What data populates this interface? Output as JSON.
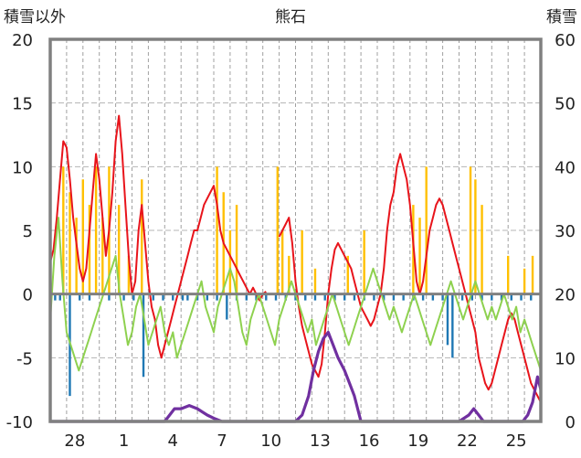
{
  "chart_data": {
    "type": "line",
    "title": "熊石",
    "left_axis_label": "積雪以外",
    "right_axis_label": "積雪",
    "y_left": {
      "min": -10,
      "max": 20,
      "ticks": [
        "20",
        "15",
        "10",
        "5",
        "0",
        "-5",
        "-10"
      ]
    },
    "y_right": {
      "min": 0,
      "max": 60,
      "ticks": [
        "60",
        "50",
        "40",
        "30",
        "20",
        "10",
        "0"
      ]
    },
    "x_range": [
      0,
      30
    ],
    "x_ticks": [
      {
        "x": 1.5,
        "label": "28"
      },
      {
        "x": 4.5,
        "label": "1"
      },
      {
        "x": 7.5,
        "label": "4"
      },
      {
        "x": 10.5,
        "label": "7"
      },
      {
        "x": 13.5,
        "label": "10"
      },
      {
        "x": 16.5,
        "label": "13"
      },
      {
        "x": 19.5,
        "label": "16"
      },
      {
        "x": 22.5,
        "label": "19"
      },
      {
        "x": 25.5,
        "label": "22"
      },
      {
        "x": 28.5,
        "label": "25"
      }
    ],
    "grid": true,
    "colors": {
      "temperature": "#e8141b",
      "wind": "#8ed14f",
      "precipitation": "#ffc000",
      "sunshine": "#1f78b4",
      "snow_depth": "#7030a0",
      "zero_line": "#808080",
      "frame": "#808080"
    },
    "series": [
      {
        "key": "temperature",
        "axis": "left",
        "x": [
          0,
          0.2,
          0.4,
          0.6,
          0.8,
          1,
          1.2,
          1.4,
          1.6,
          1.8,
          2,
          2.2,
          2.4,
          2.6,
          2.8,
          3,
          3.2,
          3.4,
          3.6,
          3.8,
          4,
          4.2,
          4.4,
          4.6,
          4.8,
          5,
          5.2,
          5.4,
          5.6,
          5.8,
          6,
          6.2,
          6.4,
          6.6,
          6.8,
          7,
          7.2,
          7.4,
          7.6,
          7.8,
          8,
          8.2,
          8.4,
          8.6,
          8.8,
          9,
          9.2,
          9.4,
          9.6,
          9.8,
          10,
          10.2,
          10.4,
          10.6,
          10.8,
          11,
          11.2,
          11.4,
          11.6,
          11.8,
          12,
          12.2,
          12.4,
          12.6,
          12.8,
          13,
          13.2
        ],
        "y": [
          2.5,
          3.5,
          6,
          9,
          12,
          11.5,
          9,
          6,
          4,
          2,
          1,
          2,
          5,
          8,
          11,
          9,
          6,
          3,
          5,
          8,
          12,
          14,
          11,
          7,
          3,
          0,
          1,
          5,
          7,
          4,
          1,
          -1,
          -2,
          -4,
          -5,
          -4,
          -3,
          -2,
          -1,
          0,
          1,
          2,
          3,
          4,
          5,
          5,
          6,
          7,
          7.5,
          8,
          8.5,
          7,
          5,
          4,
          3.5,
          3,
          2.5,
          2,
          1.5,
          1,
          0.5,
          0,
          0.5,
          0,
          -0.5,
          0,
          0.2
        ]
      },
      {
        "key": "temperature",
        "axis": "left",
        "x": [
          14,
          14.2,
          14.4,
          14.6,
          14.8,
          15,
          15.2,
          15.4,
          15.6,
          15.8,
          16,
          16.2,
          16.4,
          16.6,
          16.8,
          17,
          17.2,
          17.4,
          17.6,
          17.8,
          18,
          18.2,
          18.4,
          18.6,
          18.8,
          19,
          19.2,
          19.4,
          19.6,
          19.8,
          20,
          20.2,
          20.4,
          20.6,
          20.8,
          21,
          21.2,
          21.4,
          21.6,
          21.8,
          22,
          22.2,
          22.4,
          22.6,
          22.8,
          23,
          23.2,
          23.4,
          23.6,
          23.8,
          24,
          24.2,
          24.4,
          24.6,
          24.8,
          25,
          25.2,
          25.4,
          25.6,
          25.8,
          26,
          26.2,
          26.4,
          26.6,
          26.8,
          27,
          27.2,
          27.4,
          27.6,
          27.8,
          28,
          28.2,
          28.4,
          28.6,
          28.8,
          29,
          29.2,
          29.4,
          29.6,
          29.8,
          30
        ],
        "y": [
          4.5,
          5,
          5.5,
          6,
          4,
          1,
          -1,
          -2.5,
          -3.5,
          -4.5,
          -5.5,
          -6,
          -6.5,
          -5.5,
          -3,
          0,
          2,
          3.5,
          4,
          3.5,
          3,
          2.5,
          2,
          1,
          0,
          -1,
          -1.5,
          -2,
          -2.5,
          -2,
          -1,
          0,
          2,
          5,
          7,
          8,
          10,
          11,
          10,
          9,
          7,
          4,
          1,
          0,
          1,
          3,
          5,
          6,
          7,
          7.5,
          7,
          6,
          5,
          4,
          3,
          2,
          1,
          0,
          -1,
          -2,
          -3,
          -5,
          -6,
          -7,
          -7.5,
          -7,
          -6,
          -5,
          -4,
          -3,
          -2,
          -1.5,
          -2,
          -3,
          -4,
          -5,
          -6,
          -7,
          -7.5,
          -8,
          -8.5
        ]
      },
      {
        "key": "wind",
        "axis": "left",
        "x": [
          0,
          0.25,
          0.5,
          0.75,
          1,
          1.25,
          1.5,
          1.75,
          2,
          2.25,
          2.5,
          2.75,
          3,
          3.25,
          3.5,
          3.75,
          4,
          4.25,
          4.5,
          4.75,
          5,
          5.25,
          5.5,
          5.75,
          6,
          6.25,
          6.5,
          6.75,
          7,
          7.25,
          7.5,
          7.75,
          8,
          8.25,
          8.5,
          8.75,
          9,
          9.25,
          9.5,
          9.75,
          10,
          10.25,
          10.5,
          10.75,
          11,
          11.25,
          11.5,
          11.75,
          12,
          12.25,
          12.5,
          12.75,
          13,
          13.25,
          13.5,
          13.75,
          14,
          14.25,
          14.5,
          14.75,
          15,
          15.25,
          15.5,
          15.75,
          16,
          16.25,
          16.5,
          16.75,
          17,
          17.25,
          17.5,
          17.75,
          18,
          18.25,
          18.5,
          18.75,
          19,
          19.25,
          19.5,
          19.75,
          20,
          20.25,
          20.5,
          20.75,
          21,
          21.25,
          21.5,
          21.75,
          22,
          22.25,
          22.5,
          22.75,
          23,
          23.25,
          23.5,
          23.75,
          24,
          24.25,
          24.5,
          24.75,
          25,
          25.25,
          25.5,
          25.75,
          26,
          26.25,
          26.5,
          26.75,
          27,
          27.25,
          27.5,
          27.75,
          28,
          28.25,
          28.5,
          28.75,
          29,
          29.25,
          29.5,
          29.75,
          30
        ],
        "y": [
          -2,
          3,
          6,
          1,
          -3,
          -4,
          -5,
          -6,
          -5,
          -4,
          -3,
          -2,
          -1,
          0,
          1,
          2,
          3,
          0,
          -2,
          -4,
          -3,
          -1,
          0,
          -2,
          -4,
          -3,
          -2,
          -1,
          -3,
          -4,
          -3,
          -5,
          -4,
          -3,
          -2,
          -1,
          0,
          1,
          -1,
          -2,
          -3,
          -1,
          0,
          1,
          2,
          1,
          -1,
          -3,
          -4,
          -2,
          -1,
          0,
          -1,
          -2,
          -3,
          -4,
          -2,
          -1,
          0,
          1,
          0,
          -1,
          -2,
          -3,
          -2,
          -4,
          -3,
          -2,
          -1,
          0,
          -1,
          -2,
          -3,
          -4,
          -3,
          -2,
          -1,
          0,
          1,
          2,
          1,
          0,
          -1,
          -2,
          -1,
          -2,
          -3,
          -2,
          -1,
          0,
          -1,
          -2,
          -3,
          -4,
          -3,
          -2,
          -1,
          0,
          1,
          0,
          -1,
          -2,
          -1,
          0,
          1,
          0,
          -1,
          -2,
          -1,
          -2,
          -1,
          0,
          -1,
          -2,
          -1,
          -3,
          -2,
          -3,
          -4,
          -5,
          -6
        ]
      },
      {
        "key": "snow_depth",
        "axis": "right",
        "x": [
          0,
          7,
          7.3,
          7.6,
          8,
          8.5,
          9,
          9.3,
          9.6,
          10,
          10.5,
          11,
          12,
          13,
          14,
          15,
          15.4,
          15.8,
          16.1,
          16.4,
          16.7,
          17,
          17.3,
          17.6,
          18,
          18.3,
          18.6,
          19,
          20,
          21,
          22,
          23,
          24,
          24.5,
          25,
          25.3,
          25.6,
          25.9,
          26.2,
          26.5,
          27,
          28,
          28.5,
          28.9,
          29.2,
          29.5,
          29.8,
          30
        ],
        "y": [
          0,
          0,
          1,
          2,
          2,
          2.5,
          2,
          1.5,
          1,
          0.5,
          0,
          0,
          0,
          0,
          0,
          0,
          1,
          4,
          8,
          11,
          13,
          14,
          12,
          10,
          8,
          6,
          4,
          0,
          0,
          0,
          0,
          0,
          0,
          0,
          0,
          0.5,
          1,
          2,
          1,
          0,
          0,
          0,
          0,
          0,
          1,
          3,
          7,
          5
        ]
      }
    ],
    "bars": [
      {
        "key": "precipitation",
        "x": [
          0.8,
          1.2,
          1.6,
          2.0,
          2.4,
          2.8,
          3.2,
          3.6,
          4.2,
          4.8,
          5.6,
          10.2,
          10.6,
          11,
          11.4,
          13.9,
          14.2,
          14.6,
          15.4,
          16.2,
          18.2,
          19.2,
          22.2,
          22.6,
          23,
          25.7,
          26,
          26.4,
          28,
          29,
          29.5
        ],
        "y": [
          10,
          8,
          6,
          9,
          7,
          10,
          6,
          10,
          7,
          3,
          9,
          10,
          8,
          5,
          7,
          10,
          5,
          3,
          5,
          2,
          3,
          5,
          7,
          6,
          10,
          10,
          9,
          7,
          3,
          2,
          3
        ]
      },
      {
        "key": "sunshine",
        "x": [
          0.3,
          0.6,
          1.2,
          1.8,
          2.4,
          3.6,
          4.5,
          5.1,
          5.7,
          6.3,
          6.9,
          7.5,
          8.1,
          8.4,
          9,
          9.6,
          10.2,
          10.8,
          11.4,
          12,
          12.6,
          13.2,
          13.8,
          14.4,
          15,
          15.6,
          16.2,
          16.8,
          17.4,
          18,
          18.6,
          19.2,
          19.8,
          20.4,
          21,
          21.6,
          22.2,
          22.8,
          23.4,
          24,
          24.3,
          24.6,
          25.2,
          25.8,
          26.4,
          27,
          27.6,
          28.2,
          28.8,
          29.4
        ],
        "y": [
          -0.5,
          -0.5,
          -8,
          -0.5,
          -0.5,
          -0.5,
          -0.5,
          -0.5,
          -6.5,
          -0.5,
          -0.5,
          -0.5,
          -0.5,
          -0.5,
          -0.5,
          -0.5,
          -0.5,
          -2,
          -0.5,
          -0.5,
          -0.5,
          -0.5,
          -0.5,
          -0.5,
          -0.5,
          -0.5,
          -0.5,
          -0.5,
          -0.5,
          -0.5,
          -0.5,
          -0.5,
          -0.5,
          -0.5,
          -0.5,
          -0.5,
          -0.5,
          -0.5,
          -0.5,
          -0.5,
          -4,
          -5,
          -0.5,
          -0.5,
          -0.5,
          -0.5,
          -0.5,
          -0.5,
          -0.5,
          -0.5
        ]
      }
    ]
  }
}
